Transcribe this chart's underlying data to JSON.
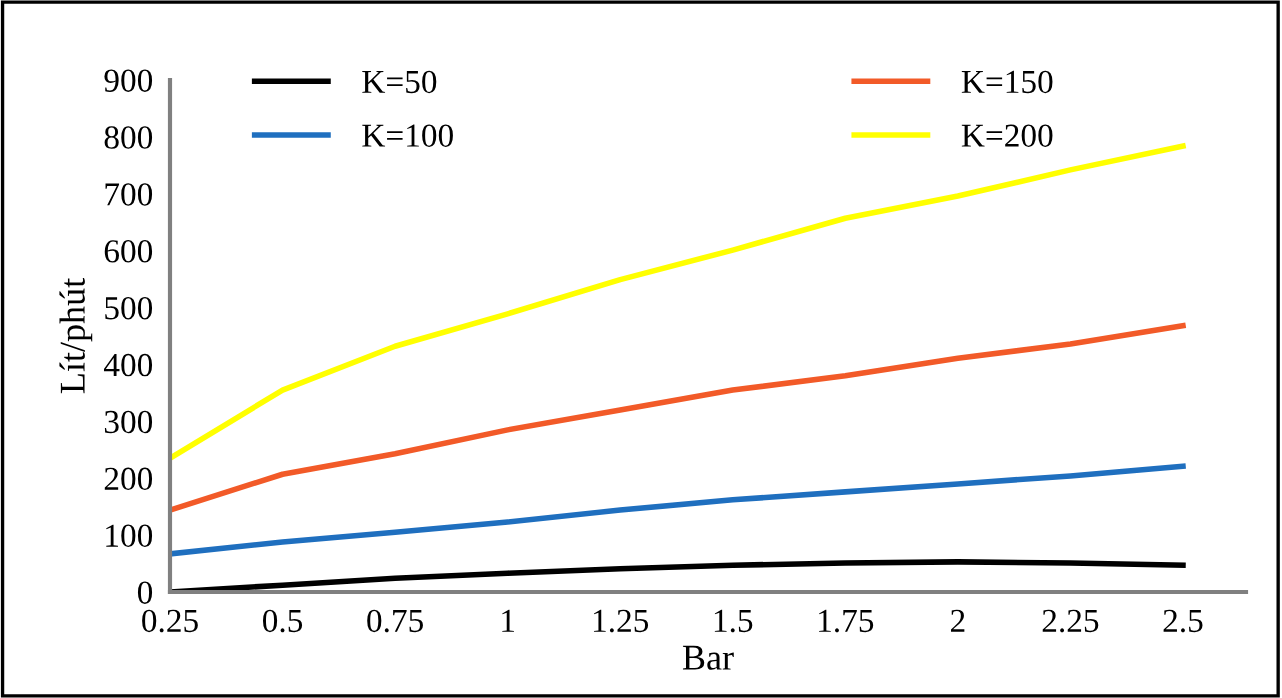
{
  "chart_data": {
    "type": "line",
    "xlabel": "Bar",
    "ylabel": "Lít/phút",
    "x": [
      0.25,
      0.5,
      0.75,
      1.0,
      1.25,
      1.5,
      1.75,
      2.0,
      2.25,
      2.5
    ],
    "xlim": [
      0.25,
      2.64
    ],
    "xticks": [
      0.25,
      0.5,
      0.75,
      1,
      1.25,
      1.5,
      1.75,
      2,
      2.25,
      2.5
    ],
    "ylim": [
      0,
      900
    ],
    "yticks": [
      0,
      100,
      200,
      300,
      400,
      500,
      600,
      700,
      800,
      900
    ],
    "grid": false,
    "legend": "top",
    "marker": "none",
    "line_style": "solid",
    "series": [
      {
        "name": "K=50",
        "color": "#000000",
        "values": [
          0,
          12,
          24,
          33,
          41,
          47,
          51,
          53,
          51,
          47
        ]
      },
      {
        "name": "K=100",
        "color": "#1f6fbf",
        "values": [
          67,
          88,
          105,
          123,
          144,
          162,
          176,
          190,
          204,
          221
        ]
      },
      {
        "name": "K=150",
        "color": "#f25a28",
        "values": [
          144,
          207,
          243,
          285,
          320,
          355,
          380,
          411,
          436,
          468
        ]
      },
      {
        "name": "K=200",
        "color": "#ffff00",
        "values": [
          235,
          355,
          432,
          489,
          549,
          601,
          657,
          696,
          742,
          784
        ]
      }
    ]
  }
}
